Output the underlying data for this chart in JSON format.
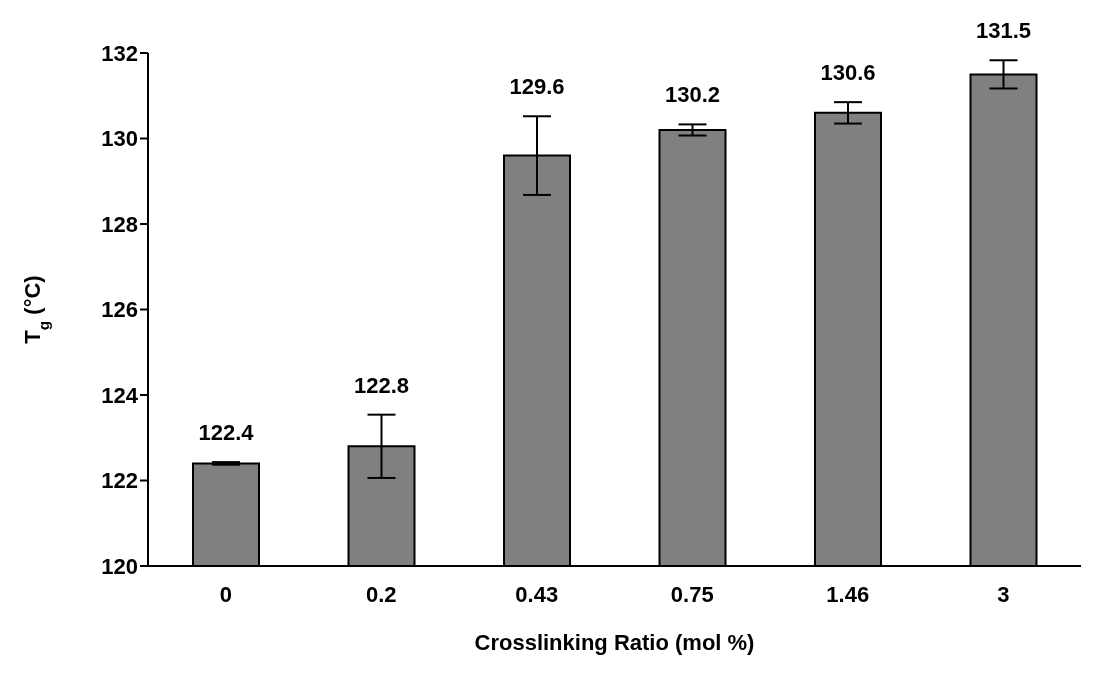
{
  "chart_data": {
    "type": "bar",
    "xlabel": "Crosslinking Ratio (mol %)",
    "ylabel": "T$_{g}$ (°C)",
    "categories": [
      "0",
      "0.2",
      "0.43",
      "0.75",
      "1.46",
      "3"
    ],
    "values": [
      122.4,
      122.8,
      129.6,
      130.2,
      130.6,
      131.5
    ],
    "errors": [
      0.03,
      0.74,
      0.92,
      0.13,
      0.25,
      0.33
    ],
    "color": "#808080",
    "ylim": [
      120,
      132
    ],
    "yticks": [
      120,
      122,
      124,
      126,
      128,
      130,
      132
    ],
    "grid": false,
    "data_labels": true
  }
}
